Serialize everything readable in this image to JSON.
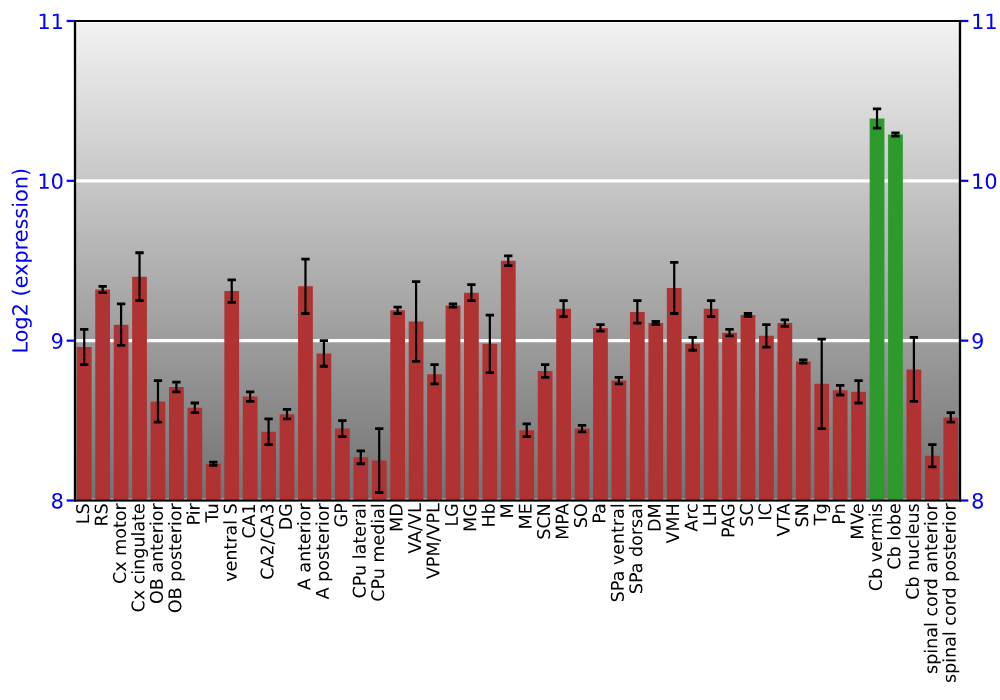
{
  "chart_data": {
    "type": "bar",
    "ylabel": "Log2 (expression)",
    "categories": [
      "LS",
      "RS",
      "Cx motor",
      "Cx cingulate",
      "OB anterior",
      "OB posterior",
      "Pir",
      "Tu",
      "ventral S",
      "CA1",
      "CA2/CA3",
      "DG",
      "A anterior",
      "A posterior",
      "GP",
      "CPu lateral",
      "CPu medial",
      "MD",
      "VA/VL",
      "VPM/VPL",
      "LG",
      "MG",
      "Hb",
      "M",
      "ME",
      "SCN",
      "MPA",
      "SO",
      "Pa",
      "SPa ventral",
      "SPa dorsal",
      "DM",
      "VMH",
      "Arc",
      "LH",
      "PAG",
      "SC",
      "IC",
      "VTA",
      "SN",
      "Tg",
      "Pn",
      "MVe",
      "Cb vermis",
      "Cb lobe",
      "Cb nucleus",
      "spinal cord anterior",
      "spinal cord posterior"
    ],
    "values": [
      8.96,
      9.32,
      9.1,
      9.4,
      8.62,
      8.71,
      8.58,
      8.23,
      9.31,
      8.65,
      8.43,
      8.54,
      9.34,
      8.92,
      8.45,
      8.27,
      8.25,
      9.19,
      9.12,
      8.79,
      9.22,
      9.3,
      8.98,
      9.5,
      8.44,
      8.81,
      9.2,
      8.45,
      9.08,
      8.75,
      9.18,
      9.11,
      9.33,
      8.98,
      9.2,
      9.05,
      9.16,
      9.03,
      9.11,
      8.87,
      8.73,
      8.69,
      8.68,
      10.39,
      10.29,
      8.82,
      8.28,
      8.52
    ],
    "errors": [
      0.11,
      0.02,
      0.13,
      0.15,
      0.13,
      0.03,
      0.03,
      0.01,
      0.07,
      0.03,
      0.08,
      0.03,
      0.17,
      0.08,
      0.05,
      0.04,
      0.2,
      0.02,
      0.25,
      0.06,
      0.01,
      0.05,
      0.18,
      0.03,
      0.04,
      0.04,
      0.05,
      0.02,
      0.02,
      0.02,
      0.07,
      0.01,
      0.16,
      0.04,
      0.05,
      0.02,
      0.01,
      0.07,
      0.02,
      0.01,
      0.28,
      0.03,
      0.07,
      0.06,
      0.01,
      0.2,
      0.07,
      0.03
    ],
    "colors": [
      "#b03232",
      "#b03232",
      "#b03232",
      "#b03232",
      "#b03232",
      "#b03232",
      "#b03232",
      "#b03232",
      "#b03232",
      "#b03232",
      "#b03232",
      "#b03232",
      "#b03232",
      "#b03232",
      "#b03232",
      "#b03232",
      "#b03232",
      "#b03232",
      "#b03232",
      "#b03232",
      "#b03232",
      "#b03232",
      "#b03232",
      "#b03232",
      "#b03232",
      "#b03232",
      "#b03232",
      "#b03232",
      "#b03232",
      "#b03232",
      "#b03232",
      "#b03232",
      "#b03232",
      "#b03232",
      "#b03232",
      "#b03232",
      "#b03232",
      "#b03232",
      "#b03232",
      "#b03232",
      "#b03232",
      "#b03232",
      "#b03232",
      "#2e9a2e",
      "#2e9a2e",
      "#b03232",
      "#b03232",
      "#b03232"
    ],
    "ylim": [
      8,
      11
    ],
    "yticks": [
      8,
      9,
      10,
      11
    ],
    "y2lim": [
      8,
      11
    ],
    "y2ticks": [
      8,
      9,
      10,
      11
    ],
    "grid": "y"
  }
}
